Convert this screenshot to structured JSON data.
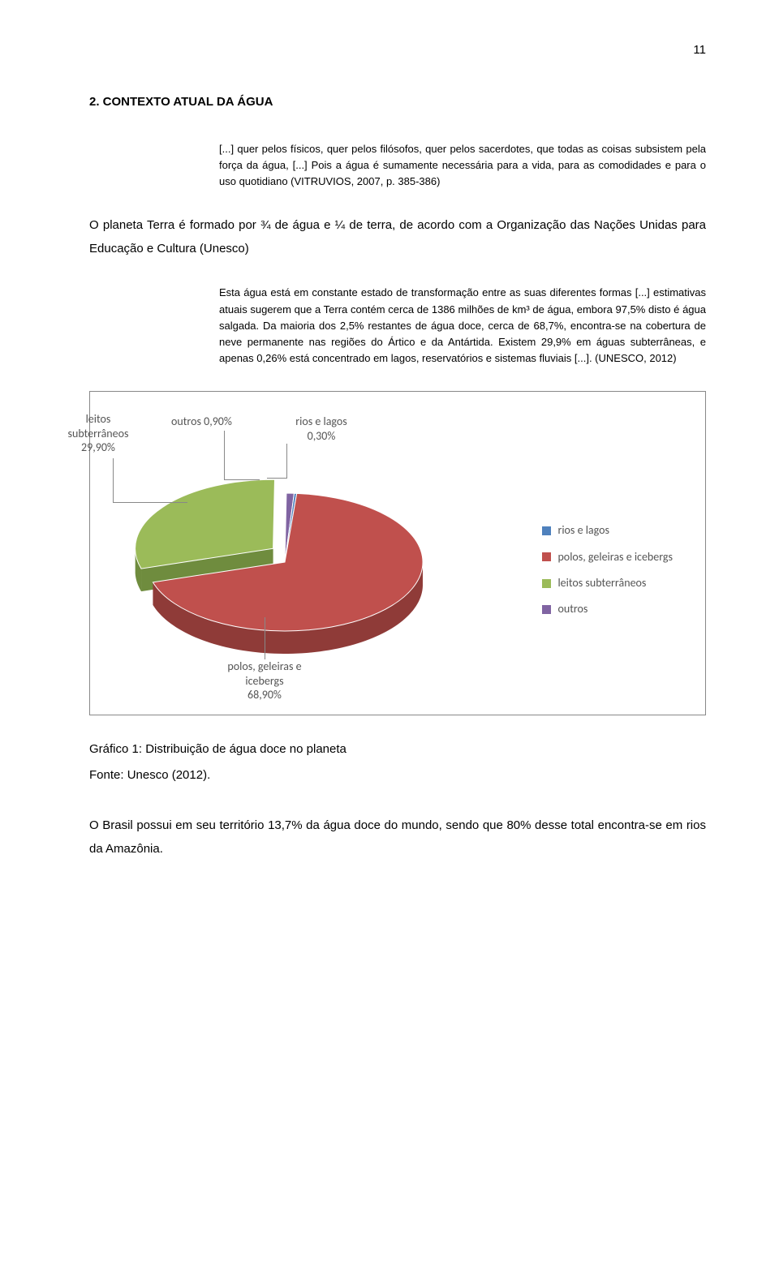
{
  "page_number": "11",
  "section_title": "2. CONTEXTO ATUAL DA ÁGUA",
  "quote1": "[...] quer pelos físicos, quer pelos filósofos, quer pelos sacerdotes, que todas as coisas subsistem pela força da água, [...] Pois a água é sumamente necessária para a vida, para as comodidades e para o uso quotidiano (VITRUVIOS, 2007, p. 385-386)",
  "para1": "O planeta Terra é formado por ¾ de água e ¼ de terra, de acordo com a Organização das Nações Unidas para Educação e Cultura (Unesco)",
  "quote2": "Esta água está em constante estado de transformação entre as suas diferentes formas [...] estimativas atuais sugerem que a Terra contém cerca de 1386 milhões de km³ de água, embora 97,5% disto é água salgada. Da maioria dos 2,5% restantes de água doce, cerca de 68,7%, encontra-se na cobertura de neve permanente nas regiões do Ártico e da Antártida. Existem 29,9% em águas subterrâneas, e apenas 0,26% está concentrado em lagos, reservatórios e sistemas fluviais [...]. (UNESCO, 2012)",
  "chart": {
    "type": "pie",
    "callouts": {
      "leitos": {
        "line1": "leitos",
        "line2": "subterrâneos",
        "line3": "29,90%"
      },
      "outros": {
        "text": "outros  0,90%"
      },
      "rios": {
        "line1": "rios e lagos",
        "line2": "0,30%"
      },
      "polos": {
        "line1": "polos, geleiras e",
        "line2": "icebergs",
        "line3": "68,90%"
      }
    },
    "legend": [
      {
        "label": "rios e lagos",
        "color": "#4f81bd"
      },
      {
        "label": "polos, geleiras e icebergs",
        "color": "#c0504d"
      },
      {
        "label": "leitos subterrâneos",
        "color": "#9bbb59"
      },
      {
        "label": "outros",
        "color": "#8064a2"
      }
    ],
    "slices": [
      {
        "name": "polos",
        "value": 68.9,
        "color": "#c0504d",
        "color_dark": "#8f3b38"
      },
      {
        "name": "leitos",
        "value": 29.9,
        "color": "#9bbb59",
        "color_dark": "#6f8c3e"
      },
      {
        "name": "outros",
        "value": 0.9,
        "color": "#8064a2",
        "color_dark": "#5c4876"
      },
      {
        "name": "rios",
        "value": 0.3,
        "color": "#4f81bd",
        "color_dark": "#385d8a"
      }
    ],
    "background_color": "#ffffff",
    "border_color": "#888888",
    "label_text_color": "#595959",
    "label_fontsize": 14
  },
  "caption": "Gráfico 1: Distribuição de água doce no planeta",
  "source": "Fonte: Unesco (2012).",
  "para2": "O Brasil possui em seu território 13,7% da água doce do mundo, sendo que 80% desse total encontra-se em rios da Amazônia."
}
